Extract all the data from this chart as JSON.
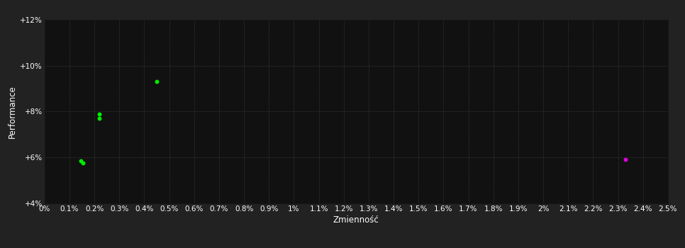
{
  "outer_bg_color": "#222222",
  "plot_bg_color": "#111111",
  "grid_color": "#444444",
  "text_color": "#ffffff",
  "xlabel": "Zmienność",
  "ylabel": "Performance",
  "xlim": [
    0.0,
    0.025
  ],
  "ylim": [
    0.04,
    0.12
  ],
  "xtick_step": 0.001,
  "ytick_values": [
    0.04,
    0.06,
    0.08,
    0.1,
    0.12
  ],
  "ytick_labels": [
    "+4%",
    "+6%",
    "+8%",
    "+10%",
    "+12%"
  ],
  "green_points": [
    [
      0.00145,
      0.0585
    ],
    [
      0.00155,
      0.0575
    ],
    [
      0.0022,
      0.079
    ],
    [
      0.0022,
      0.077
    ],
    [
      0.0045,
      0.093
    ]
  ],
  "magenta_points": [
    [
      0.0233,
      0.059
    ]
  ],
  "green_color": "#00ee00",
  "magenta_color": "#dd00dd",
  "marker_size": 18,
  "font_size_tick": 7.5,
  "font_size_label": 8.5
}
